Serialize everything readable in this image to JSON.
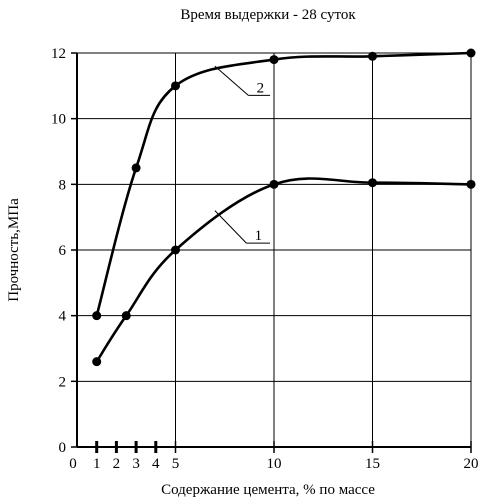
{
  "chart_data": {
    "type": "line",
    "title": "Время выдержки - 28 суток",
    "xlabel": "Содержание цемента, % по массе",
    "ylabel": "Прочность,МПа",
    "xlim": [
      0,
      20
    ],
    "ylim": [
      0,
      12
    ],
    "x_ticks": [
      0,
      1,
      2,
      3,
      4,
      5,
      10,
      15,
      20
    ],
    "y_ticks": [
      0,
      2,
      4,
      6,
      8,
      10,
      12
    ],
    "grid": true,
    "series": [
      {
        "name": "1",
        "points": [
          [
            1,
            2.6
          ],
          [
            2.5,
            4.0
          ],
          [
            5,
            6.0
          ],
          [
            10,
            8.0
          ],
          [
            15,
            8.05
          ],
          [
            20,
            8.0
          ]
        ]
      },
      {
        "name": "2",
        "points": [
          [
            1,
            4.0
          ],
          [
            3,
            8.5
          ],
          [
            5,
            11.0
          ],
          [
            10,
            11.8
          ],
          [
            15,
            11.9
          ],
          [
            20,
            12.0
          ]
        ]
      }
    ]
  }
}
